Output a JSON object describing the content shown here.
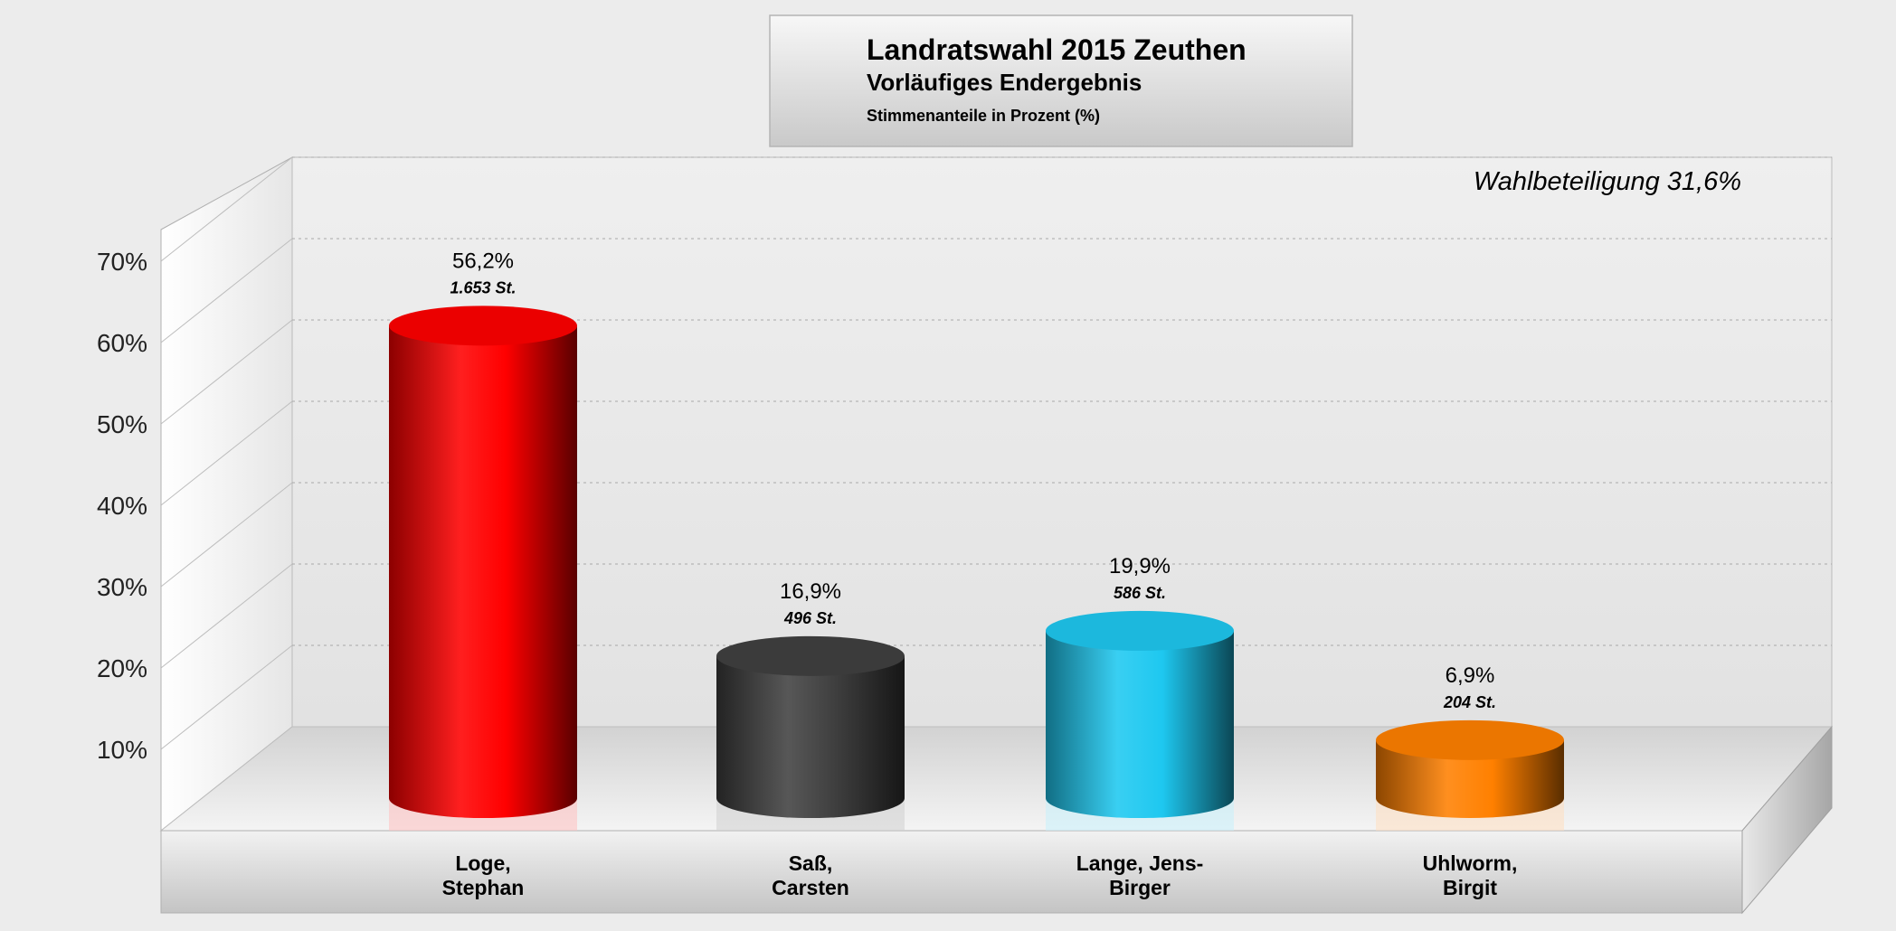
{
  "header": {
    "title": "Landratswahl 2015 Zeuthen",
    "subtitle": "Vorläufiges Endergebnis",
    "unit_note": "Stimmenanteile in Prozent (%)"
  },
  "annotation": "Wahlbeteiligung 31,6%",
  "chart_data": {
    "type": "bar",
    "style": "3d-cylinder",
    "title": "Landratswahl 2015 Zeuthen",
    "subtitle": "Vorläufiges Endergebnis",
    "ylabel": "",
    "xlabel": "",
    "ylim": [
      0,
      70
    ],
    "y_ticks": [
      "10%",
      "20%",
      "30%",
      "40%",
      "50%",
      "60%",
      "70%"
    ],
    "y_tick_values": [
      10,
      20,
      30,
      40,
      50,
      60,
      70
    ],
    "grid": true,
    "categories": [
      {
        "line1": "Loge,",
        "line2": "Stephan"
      },
      {
        "line1": "Saß,",
        "line2": "Carsten"
      },
      {
        "line1": "Lange, Jens-",
        "line2": "Birger"
      },
      {
        "line1": "Uhlworm,",
        "line2": "Birgit"
      }
    ],
    "values": [
      56.2,
      16.9,
      19.9,
      6.9
    ],
    "value_labels": [
      "56,2%",
      "16,9%",
      "19,9%",
      "6,9%"
    ],
    "votes_labels": [
      "1.653 St.",
      "496 St.",
      "586 St.",
      "204 St."
    ],
    "colors": [
      "#ff0000",
      "#404040",
      "#1ec8f0",
      "#ff8000"
    ]
  }
}
